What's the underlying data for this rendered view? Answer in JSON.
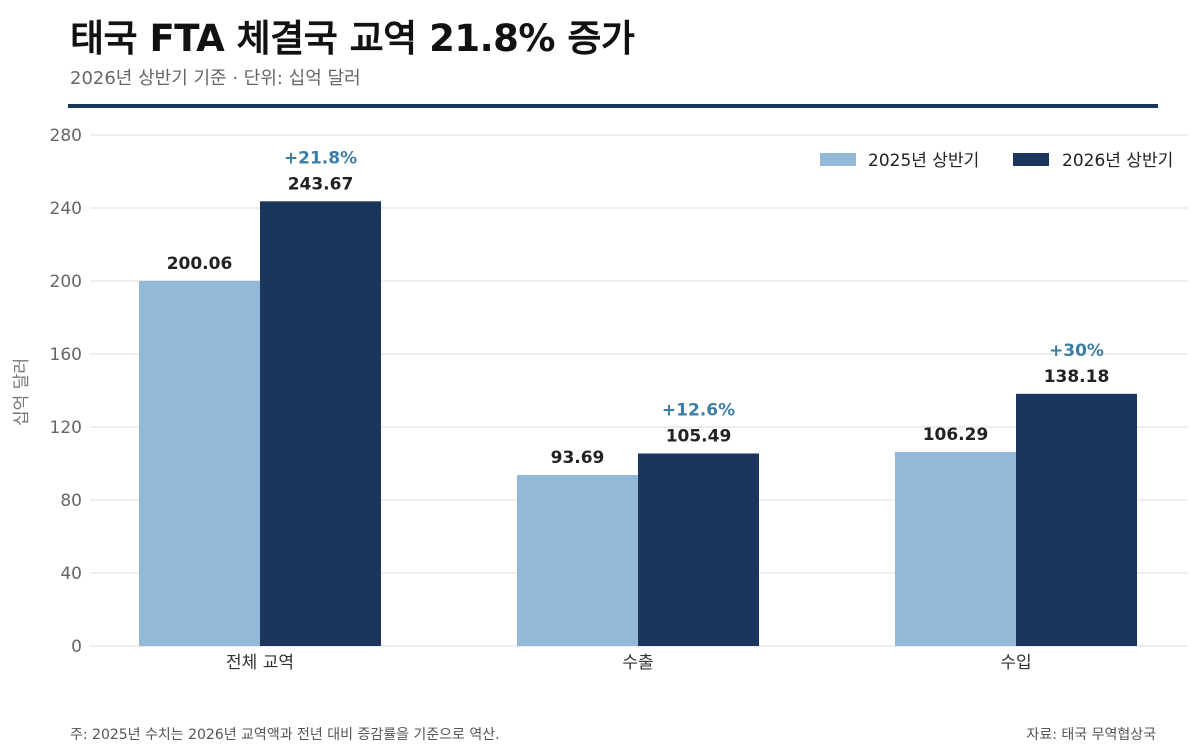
{
  "header": {
    "title": "태국 FTA 체결국 교역 21.8% 증가",
    "subtitle": "2026년 상반기 기준 · 단위: 십억 달러"
  },
  "footer": {
    "note": "주: 2025년 수치는 2026년 교역액과 전년 대비 증감률을 기준으로 역산.",
    "source": "자료: 태국 무역협상국"
  },
  "colors": {
    "series_2025": "#93b8d8",
    "series_2026": "#1b365d",
    "change_label": "#3d7ea6",
    "rule": "#1b365d",
    "grid": "#dcdcdc"
  },
  "chart_data": {
    "type": "bar",
    "categories": [
      "전체 교역",
      "수출",
      "수입"
    ],
    "series": [
      {
        "name": "2025년 상반기",
        "values": [
          200.06,
          93.69,
          106.29
        ]
      },
      {
        "name": "2026년 상반기",
        "values": [
          243.67,
          105.49,
          138.18
        ]
      }
    ],
    "value_labels": [
      [
        "200.06",
        "93.69",
        "106.29"
      ],
      [
        "243.67",
        "105.49",
        "138.18"
      ]
    ],
    "change_labels": [
      "+21.8%",
      "+12.6%",
      "+30%"
    ],
    "ylabel": "십억 달러",
    "xlabel": "",
    "ylim": [
      0,
      280
    ],
    "yticks": [
      0,
      40,
      80,
      120,
      160,
      200,
      240,
      280
    ],
    "grid": true,
    "legend_position": "top-right"
  }
}
